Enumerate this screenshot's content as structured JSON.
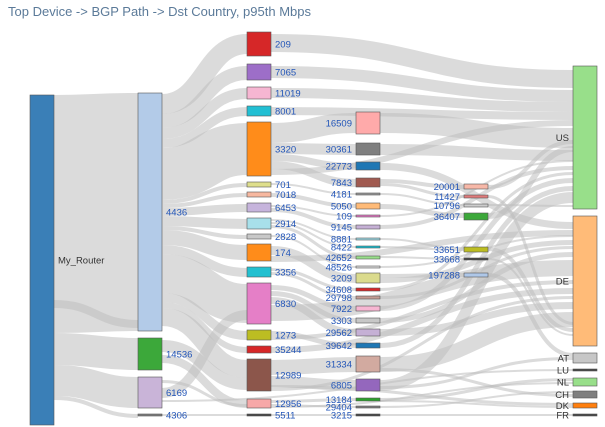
{
  "title": "Top Device -> BGP Path -> Dst Country, p95th Mbps",
  "chart_data": {
    "type": "sankey",
    "title": "Top Device -> BGP Path -> Dst Country, p95th Mbps",
    "colors": {
      "link": "#bdbdbd",
      "label_blue": "#2255b8",
      "label_dark": "#333333"
    },
    "nodes": [
      {
        "id": "router",
        "label": "My_Router",
        "color": "#3a7fb7",
        "stage": 0
      },
      {
        "id": "n4436",
        "label": "4436",
        "color": "#b3cbe8",
        "stage": 1
      },
      {
        "id": "n14536",
        "label": "14536",
        "color": "#3ca83a",
        "stage": 1
      },
      {
        "id": "n6169",
        "label": "6169",
        "color": "#c9b4d8",
        "stage": 1
      },
      {
        "id": "n4306",
        "label": "4306",
        "color": "#7f7f7f",
        "stage": 1
      },
      {
        "id": "n209",
        "label": "209",
        "color": "#d62728",
        "stage": 2
      },
      {
        "id": "n7065",
        "label": "7065",
        "color": "#9d6ec8",
        "stage": 2
      },
      {
        "id": "n11019",
        "label": "11019",
        "color": "#f6b6d2",
        "stage": 2
      },
      {
        "id": "n8001",
        "label": "8001",
        "color": "#22bfd3",
        "stage": 2
      },
      {
        "id": "n3320",
        "label": "3320",
        "color": "#ff8c1a",
        "stage": 2
      },
      {
        "id": "n701",
        "label": "701",
        "color": "#dede8c",
        "stage": 2
      },
      {
        "id": "n7018",
        "label": "7018",
        "color": "#f7b8a0",
        "stage": 2
      },
      {
        "id": "n6453",
        "label": "6453",
        "color": "#c6b4dc",
        "stage": 2
      },
      {
        "id": "n2914",
        "label": "2914",
        "color": "#a8e0ea",
        "stage": 2
      },
      {
        "id": "n2828",
        "label": "2828",
        "color": "#c8c8c8",
        "stage": 2
      },
      {
        "id": "n174",
        "label": "174",
        "color": "#ff8c1a",
        "stage": 2
      },
      {
        "id": "n3356",
        "label": "3356",
        "color": "#22c0d0",
        "stage": 2
      },
      {
        "id": "n6830",
        "label": "6830",
        "color": "#e57fc7",
        "stage": 2
      },
      {
        "id": "n1273",
        "label": "1273",
        "color": "#bcbd22",
        "stage": 2
      },
      {
        "id": "n35244",
        "label": "35244",
        "color": "#d62728",
        "stage": 2
      },
      {
        "id": "n12989",
        "label": "12989",
        "color": "#8c564b",
        "stage": 2
      },
      {
        "id": "n12956",
        "label": "12956",
        "color": "#f7a8a8",
        "stage": 2
      },
      {
        "id": "n5511",
        "label": "5511",
        "color": "#444444",
        "stage": 2
      },
      {
        "id": "n16509",
        "label": "16509",
        "color": "#ffaaaa",
        "stage": 3
      },
      {
        "id": "n30361",
        "label": "30361",
        "color": "#7f7f7f",
        "stage": 3
      },
      {
        "id": "n22773",
        "label": "22773",
        "color": "#1f77b4",
        "stage": 3
      },
      {
        "id": "n7843",
        "label": "7843",
        "color": "#a05a50",
        "stage": 3
      },
      {
        "id": "n4181",
        "label": "4181",
        "color": "#999999",
        "stage": 3
      },
      {
        "id": "n5050",
        "label": "5050",
        "color": "#ffbb78",
        "stage": 3
      },
      {
        "id": "n109",
        "label": "109",
        "color": "#e377c2",
        "stage": 3
      },
      {
        "id": "n9145",
        "label": "9145",
        "color": "#c5b0d5",
        "stage": 3
      },
      {
        "id": "n8881",
        "label": "8881",
        "color": "#9edae5",
        "stage": 3
      },
      {
        "id": "n8422",
        "label": "8422",
        "color": "#17becf",
        "stage": 3
      },
      {
        "id": "n42652",
        "label": "42652",
        "color": "#98df8a",
        "stage": 3
      },
      {
        "id": "n48526",
        "label": "48526",
        "color": "#dddddd",
        "stage": 3
      },
      {
        "id": "n3209",
        "label": "3209",
        "color": "#dbdb8d",
        "stage": 3
      },
      {
        "id": "n34608",
        "label": "34608",
        "color": "#d62728",
        "stage": 3
      },
      {
        "id": "n29798",
        "label": "29798",
        "color": "#c49c94",
        "stage": 3
      },
      {
        "id": "n7922",
        "label": "7922",
        "color": "#f7b6d2",
        "stage": 3
      },
      {
        "id": "n3303",
        "label": "3303",
        "color": "#c7c7c7",
        "stage": 3
      },
      {
        "id": "n29562",
        "label": "29562",
        "color": "#c5b0d5",
        "stage": 3
      },
      {
        "id": "n39642",
        "label": "39642",
        "color": "#1f77b4",
        "stage": 3
      },
      {
        "id": "n31334",
        "label": "31334",
        "color": "#d2aaa0",
        "stage": 3
      },
      {
        "id": "n6805",
        "label": "6805",
        "color": "#9467bd",
        "stage": 3
      },
      {
        "id": "n13184",
        "label": "13184",
        "color": "#2ca02c",
        "stage": 3
      },
      {
        "id": "n29404",
        "label": "29404",
        "color": "#7f7f7f",
        "stage": 3
      },
      {
        "id": "n3215",
        "label": "3215",
        "color": "#444444",
        "stage": 3
      },
      {
        "id": "n20001",
        "label": "20001",
        "color": "#f7b8a8",
        "stage": 4
      },
      {
        "id": "n11427",
        "label": "11427",
        "color": "#e07a7a",
        "stage": 4
      },
      {
        "id": "n10796",
        "label": "10796",
        "color": "#cccccc",
        "stage": 4
      },
      {
        "id": "n36407",
        "label": "36407",
        "color": "#3ca83a",
        "stage": 4
      },
      {
        "id": "n33651",
        "label": "33651",
        "color": "#bcbd22",
        "stage": 4
      },
      {
        "id": "n33668",
        "label": "33668",
        "color": "#444444",
        "stage": 4
      },
      {
        "id": "n197288",
        "label": "197288",
        "color": "#aec7e8",
        "stage": 4
      },
      {
        "id": "US",
        "label": "US",
        "color": "#98df8a",
        "stage": 5
      },
      {
        "id": "DE",
        "label": "DE",
        "color": "#ffbb78",
        "stage": 5
      },
      {
        "id": "AT",
        "label": "AT",
        "color": "#c7c7c7",
        "stage": 5
      },
      {
        "id": "LU",
        "label": "LU",
        "color": "#444444",
        "stage": 5
      },
      {
        "id": "NL",
        "label": "NL",
        "color": "#98df8a",
        "stage": 5
      },
      {
        "id": "CH",
        "label": "CH",
        "color": "#7f7f7f",
        "stage": 5
      },
      {
        "id": "DK",
        "label": "DK",
        "color": "#ff7f0e",
        "stage": 5
      },
      {
        "id": "FR",
        "label": "FR",
        "color": "#444444",
        "stage": 5
      }
    ]
  }
}
